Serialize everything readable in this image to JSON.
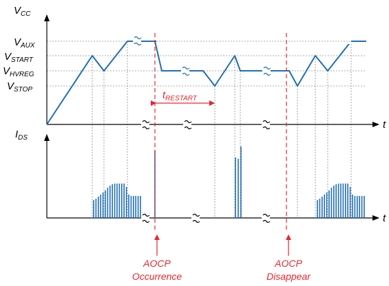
{
  "top": {
    "y_axis": {
      "main": "V",
      "sub": "CC"
    },
    "x_axis": "t",
    "levels": [
      {
        "main": "V",
        "sub": "AUX"
      },
      {
        "main": "V",
        "sub": "START"
      },
      {
        "main": "V",
        "sub": "HVREG"
      },
      {
        "main": "V",
        "sub": "STOP"
      }
    ],
    "interval": {
      "main": "t",
      "sub": "RESTART"
    }
  },
  "bottom": {
    "y_axis": {
      "main": "I",
      "sub": "DS"
    },
    "x_axis": "t"
  },
  "events": {
    "occurrence": {
      "line1": "AOCP",
      "line2": "Occurrence"
    },
    "disappear": {
      "line1": "AOCP",
      "line2": "Disappear"
    }
  },
  "colors": {
    "trace": "#1f6eb5",
    "event": "#e8262d",
    "grid": "#8c8c8c",
    "axis": "#000000"
  }
}
